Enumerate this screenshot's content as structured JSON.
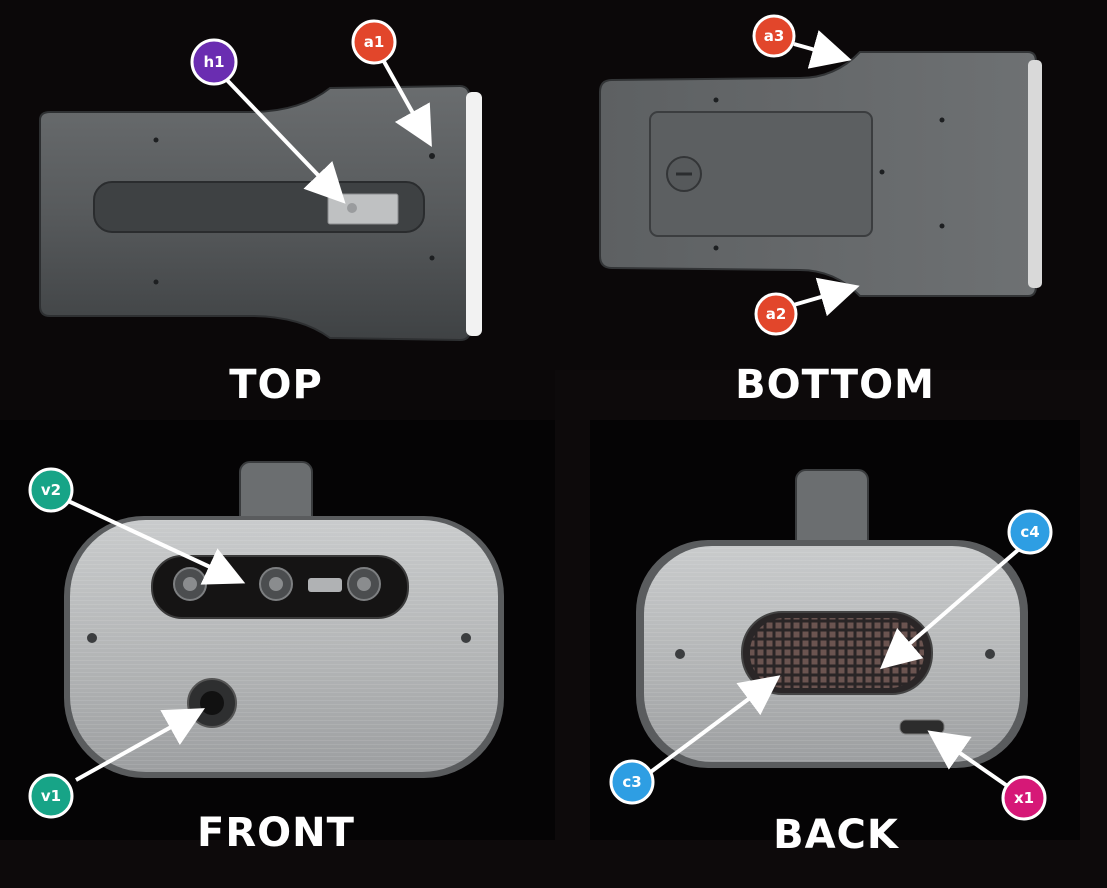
{
  "views": {
    "top": "TOP",
    "bottom": "BOTTOM",
    "front": "FRONT",
    "back": "BACK"
  },
  "callouts": {
    "h1": {
      "label": "h1",
      "color": "#6a2db1"
    },
    "a1": {
      "label": "a1",
      "color": "#e2462b"
    },
    "a2": {
      "label": "a2",
      "color": "#e2462b"
    },
    "a3": {
      "label": "a3",
      "color": "#e2462b"
    },
    "v1": {
      "label": "v1",
      "color": "#17a487"
    },
    "v2": {
      "label": "v2",
      "color": "#17a487"
    },
    "c3": {
      "label": "c3",
      "color": "#2e9ee3"
    },
    "c4": {
      "label": "c4",
      "color": "#2e9ee3"
    },
    "x1": {
      "label": "x1",
      "color": "#d61877"
    }
  }
}
